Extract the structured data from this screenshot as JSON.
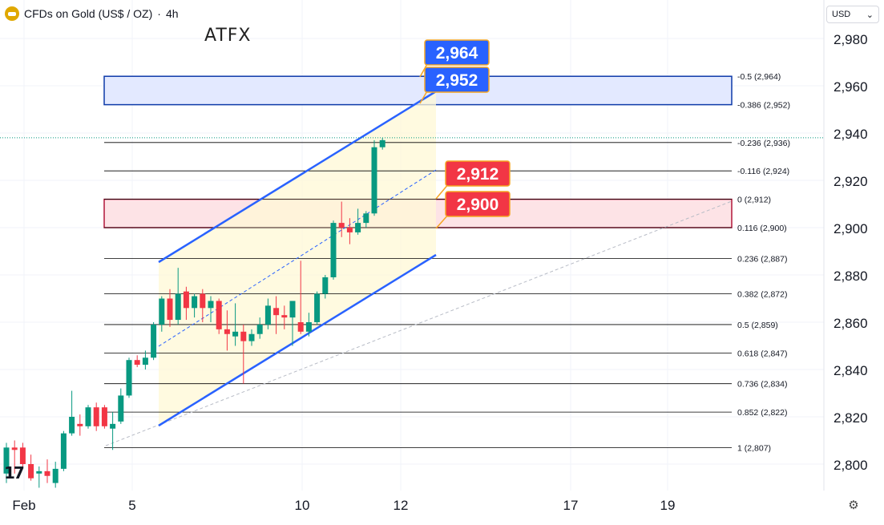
{
  "header": {
    "symbol_title": "CFDs on Gold (US$ / OZ)",
    "separator": "·",
    "interval": "4h",
    "broker_logo": "ATFX"
  },
  "currency_selector": {
    "value": "USD",
    "icon": "chevron-down-icon"
  },
  "settings": {
    "icon": "gear-icon"
  },
  "branding": {
    "tv_logo_text": "17"
  },
  "colors": {
    "up": "#089981",
    "down": "#f23645",
    "channel": "#2962ff",
    "resistance_box_fill": "#e3e9ff",
    "resistance_box_border": "#0d3aa9",
    "support_box_fill": "#fde3e6",
    "support_box_border": "#b2163a",
    "blue_label": "#2962ff",
    "red_label": "#f23645",
    "label_border": "#f5a623",
    "fib_line": "#000000"
  },
  "chart_data": {
    "type": "candlestick",
    "title": "CFDs on Gold (US$ / OZ) · 4h",
    "x_tick_labels": [
      "Feb",
      "5",
      "10",
      "12",
      "17",
      "19"
    ],
    "y_tick_labels": [
      "2,980",
      "2,960",
      "2,940",
      "2,920",
      "2,900",
      "2,880",
      "2,860",
      "2,840",
      "2,820",
      "2,800"
    ],
    "ylim": [
      2791,
      3000
    ],
    "grid": true,
    "candles": [
      {
        "o": 2796,
        "h": 2809,
        "l": 2792,
        "c": 2807
      },
      {
        "o": 2807,
        "h": 2810,
        "l": 2796,
        "c": 2806
      },
      {
        "o": 2807,
        "h": 2809,
        "l": 2798,
        "c": 2800
      },
      {
        "o": 2800,
        "h": 2804,
        "l": 2793,
        "c": 2794
      },
      {
        "o": 2796,
        "h": 2799,
        "l": 2790,
        "c": 2797
      },
      {
        "o": 2797,
        "h": 2802,
        "l": 2792,
        "c": 2795
      },
      {
        "o": 2792,
        "h": 2801,
        "l": 2790,
        "c": 2798
      },
      {
        "o": 2798,
        "h": 2814,
        "l": 2797,
        "c": 2813
      },
      {
        "o": 2813,
        "h": 2831,
        "l": 2812,
        "c": 2820
      },
      {
        "o": 2817,
        "h": 2821,
        "l": 2812,
        "c": 2816
      },
      {
        "o": 2816,
        "h": 2825,
        "l": 2815,
        "c": 2824
      },
      {
        "o": 2824,
        "h": 2826,
        "l": 2814,
        "c": 2816
      },
      {
        "o": 2824,
        "h": 2825,
        "l": 2815,
        "c": 2816
      },
      {
        "o": 2815,
        "h": 2822,
        "l": 2806,
        "c": 2817
      },
      {
        "o": 2818,
        "h": 2832,
        "l": 2817,
        "c": 2829
      },
      {
        "o": 2829,
        "h": 2845,
        "l": 2828,
        "c": 2844
      },
      {
        "o": 2844,
        "h": 2846,
        "l": 2841,
        "c": 2842
      },
      {
        "o": 2842,
        "h": 2848,
        "l": 2840,
        "c": 2845
      },
      {
        "o": 2845,
        "h": 2860,
        "l": 2844,
        "c": 2859
      },
      {
        "o": 2859,
        "h": 2871,
        "l": 2856,
        "c": 2870
      },
      {
        "o": 2870,
        "h": 2874,
        "l": 2858,
        "c": 2861
      },
      {
        "o": 2861,
        "h": 2883,
        "l": 2859,
        "c": 2872
      },
      {
        "o": 2873,
        "h": 2875,
        "l": 2861,
        "c": 2866
      },
      {
        "o": 2866,
        "h": 2872,
        "l": 2862,
        "c": 2871
      },
      {
        "o": 2872,
        "h": 2874,
        "l": 2860,
        "c": 2866
      },
      {
        "o": 2866,
        "h": 2871,
        "l": 2860,
        "c": 2869
      },
      {
        "o": 2869,
        "h": 2870,
        "l": 2855,
        "c": 2857
      },
      {
        "o": 2857,
        "h": 2865,
        "l": 2848,
        "c": 2855
      },
      {
        "o": 2854,
        "h": 2868,
        "l": 2850,
        "c": 2856
      },
      {
        "o": 2856,
        "h": 2859,
        "l": 2834,
        "c": 2852
      },
      {
        "o": 2852,
        "h": 2857,
        "l": 2850,
        "c": 2855
      },
      {
        "o": 2855,
        "h": 2862,
        "l": 2853,
        "c": 2859
      },
      {
        "o": 2859,
        "h": 2870,
        "l": 2857,
        "c": 2867
      },
      {
        "o": 2866,
        "h": 2871,
        "l": 2855,
        "c": 2863
      },
      {
        "o": 2863,
        "h": 2867,
        "l": 2857,
        "c": 2862
      },
      {
        "o": 2862,
        "h": 2869,
        "l": 2850,
        "c": 2869
      },
      {
        "o": 2860,
        "h": 2886,
        "l": 2855,
        "c": 2856
      },
      {
        "o": 2856,
        "h": 2864,
        "l": 2854,
        "c": 2860
      },
      {
        "o": 2860,
        "h": 2873,
        "l": 2859,
        "c": 2872
      },
      {
        "o": 2872,
        "h": 2880,
        "l": 2870,
        "c": 2879
      },
      {
        "o": 2879,
        "h": 2903,
        "l": 2878,
        "c": 2902
      },
      {
        "o": 2902,
        "h": 2911,
        "l": 2896,
        "c": 2900
      },
      {
        "o": 2900,
        "h": 2904,
        "l": 2893,
        "c": 2898
      },
      {
        "o": 2898,
        "h": 2908,
        "l": 2897,
        "c": 2902
      },
      {
        "o": 2902,
        "h": 2907,
        "l": 2900,
        "c": 2906
      },
      {
        "o": 2906,
        "h": 2937,
        "l": 2905,
        "c": 2934
      },
      {
        "o": 2934,
        "h": 2938,
        "l": 2933,
        "c": 2937
      }
    ],
    "last_price_level": 2938,
    "fib_levels": [
      {
        "label": "-0.5 (2,964)",
        "value": 2964
      },
      {
        "label": "-0.386 (2,952)",
        "value": 2952
      },
      {
        "label": "-0.236 (2,936)",
        "value": 2936
      },
      {
        "label": "-0.116 (2,924)",
        "value": 2924
      },
      {
        "label": "0 (2,912)",
        "value": 2912
      },
      {
        "label": "0.116 (2,900)",
        "value": 2900
      },
      {
        "label": "0.236 (2,887)",
        "value": 2887
      },
      {
        "label": "0.382 (2,872)",
        "value": 2872
      },
      {
        "label": "0.5 (2,859)",
        "value": 2859
      },
      {
        "label": "0.618 (2,847)",
        "value": 2847
      },
      {
        "label": "0.736 (2,834)",
        "value": 2834
      },
      {
        "label": "0.852 (2,822)",
        "value": 2822
      },
      {
        "label": "1 (2,807)",
        "value": 2807
      }
    ],
    "zones": [
      {
        "name": "resistance",
        "low": 2952,
        "high": 2964
      },
      {
        "name": "support",
        "low": 2900,
        "high": 2912
      }
    ],
    "price_callouts": [
      {
        "text": "2,964",
        "color": "blue"
      },
      {
        "text": "2,952",
        "color": "blue"
      },
      {
        "text": "2,912",
        "color": "red"
      },
      {
        "text": "2,900",
        "color": "red"
      }
    ]
  }
}
